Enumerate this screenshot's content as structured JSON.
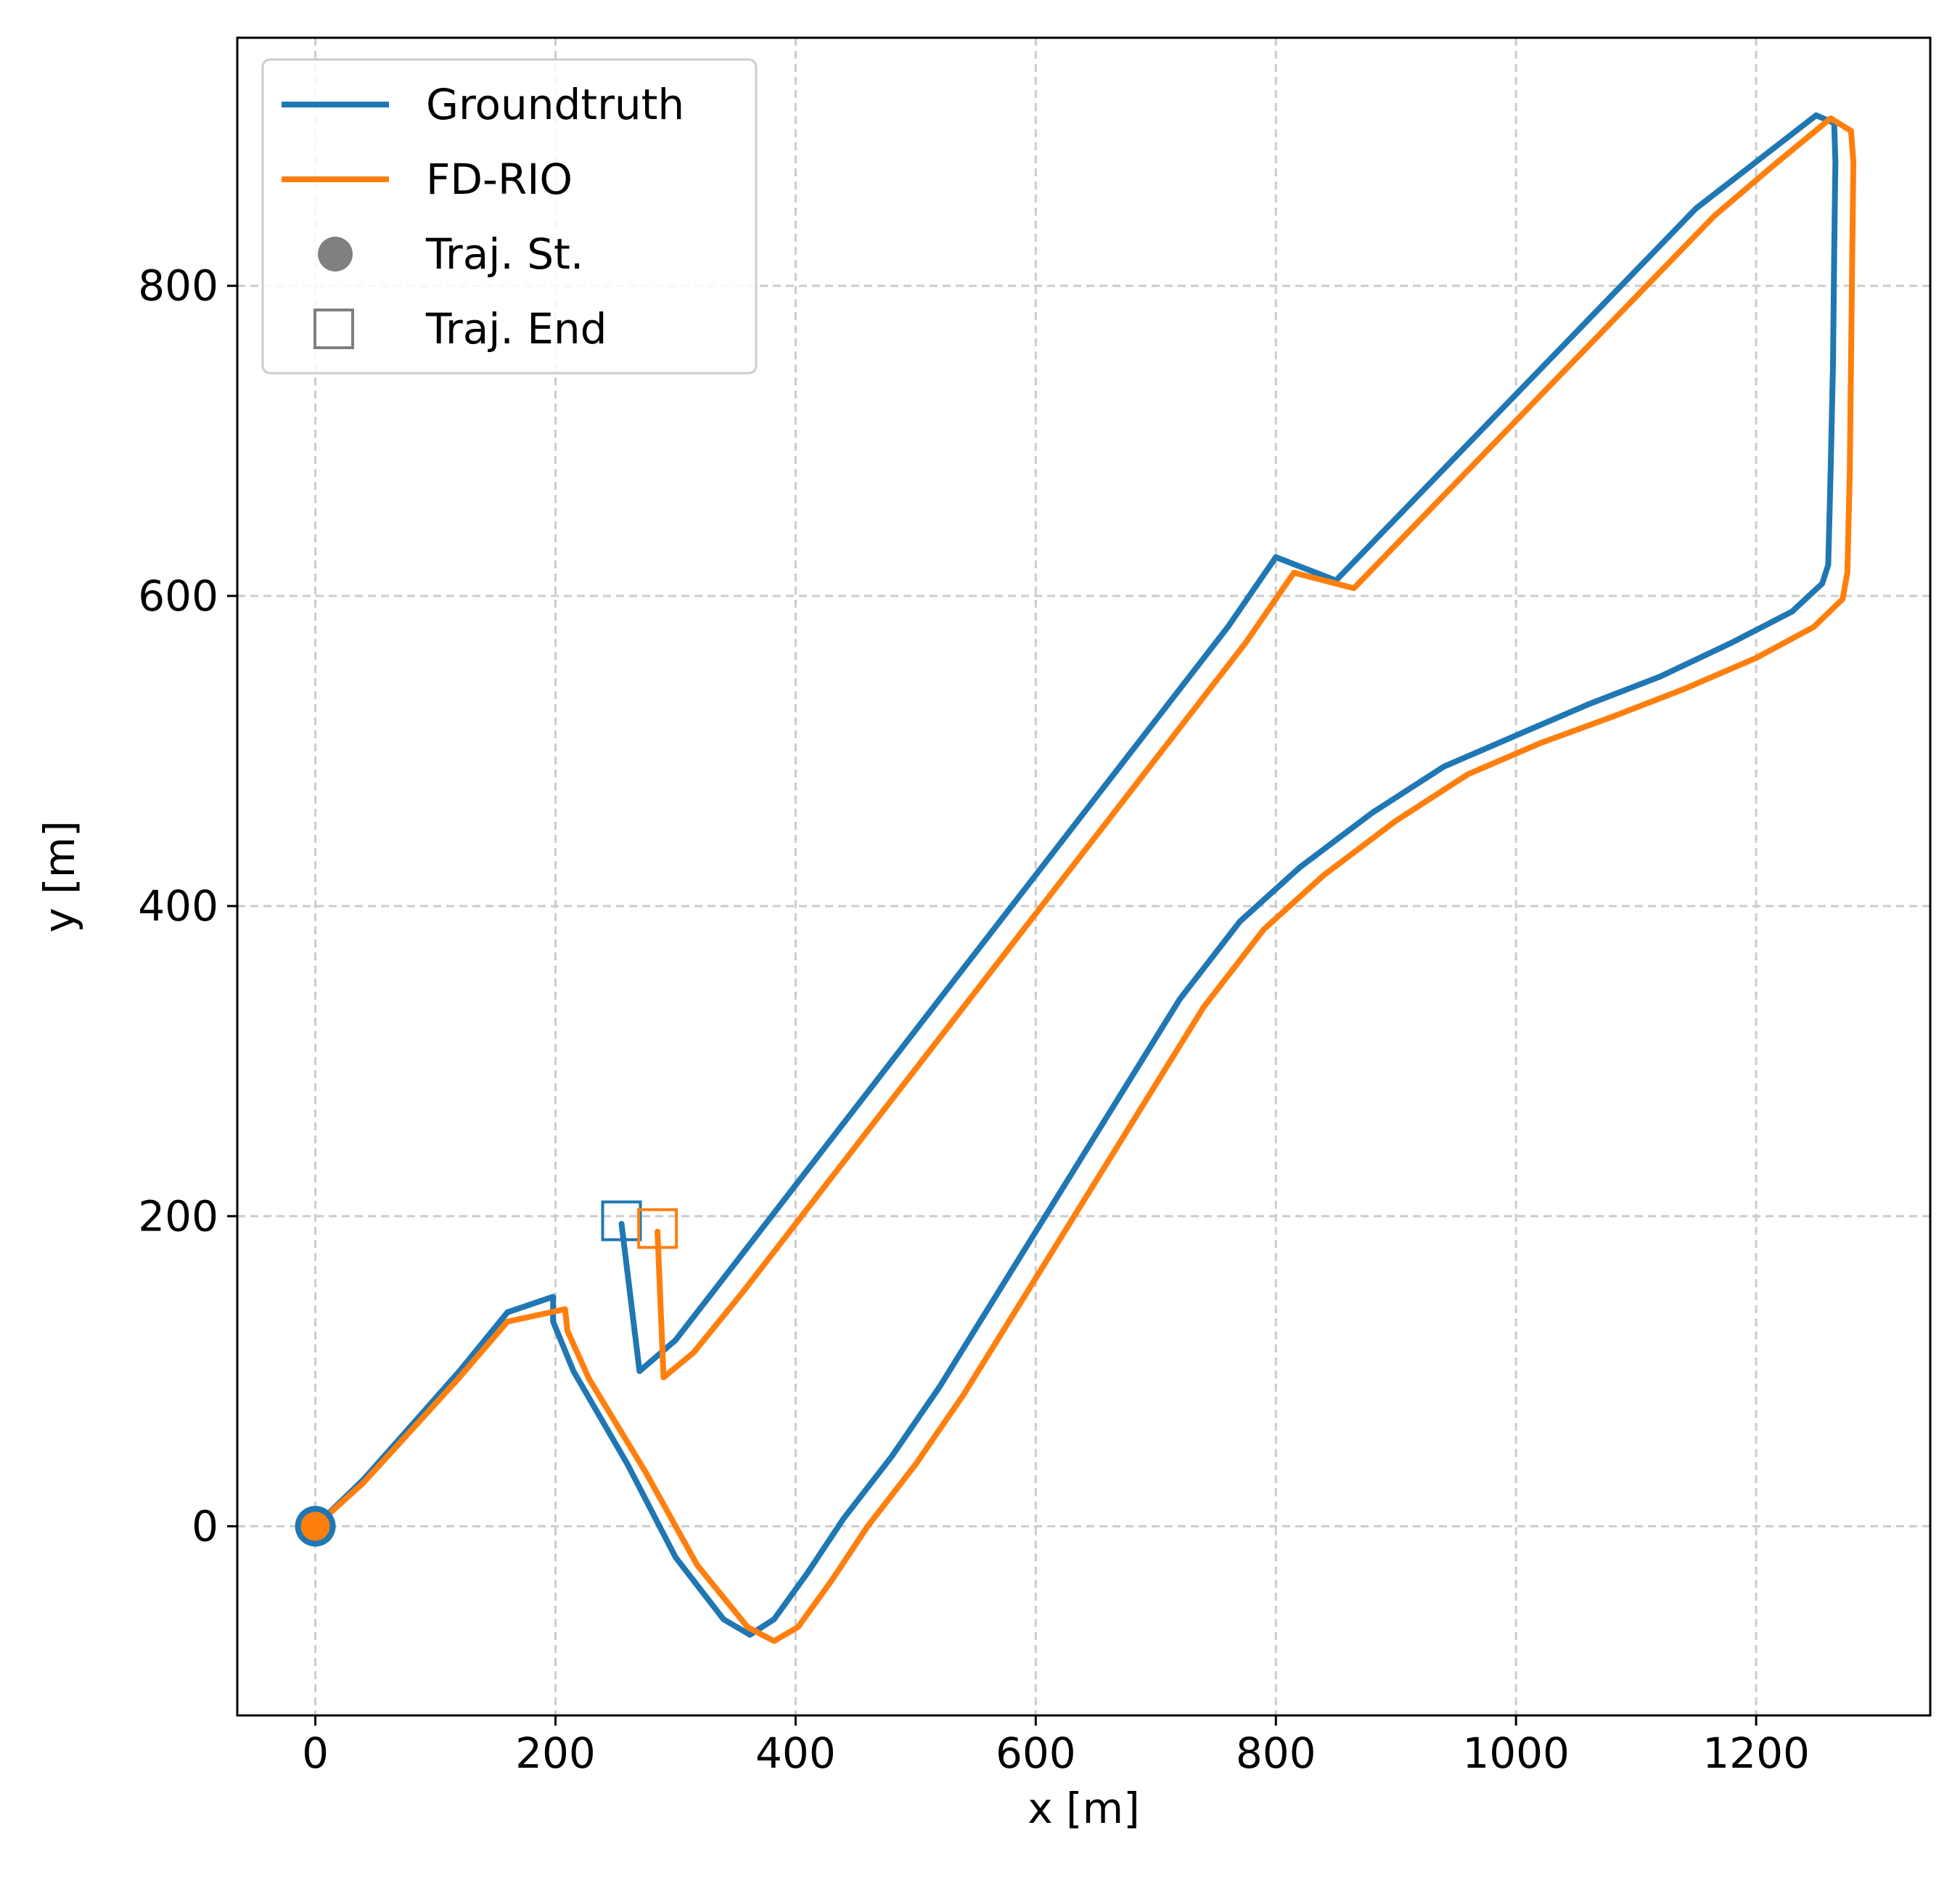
{
  "chart_data": {
    "type": "line",
    "xlabel": "x [m]",
    "ylabel": "y [m]",
    "xlim": [
      -65,
      1345
    ],
    "ylim": [
      -122,
      960
    ],
    "xticks": [
      0,
      200,
      400,
      600,
      800,
      1000,
      1200
    ],
    "yticks": [
      0,
      200,
      400,
      600,
      800
    ],
    "grid": true,
    "legend_position": "top-left",
    "legend": [
      {
        "label": "Groundtruth",
        "kind": "line",
        "color": "#1f77b4"
      },
      {
        "label": "FD-RIO",
        "kind": "line",
        "color": "#ff7f0e"
      },
      {
        "label": "Traj. St.",
        "kind": "filled-circle",
        "color": "#808080"
      },
      {
        "label": "Traj. End",
        "kind": "open-square",
        "color": "#808080"
      }
    ],
    "series": [
      {
        "name": "Groundtruth",
        "color": "#1f77b4",
        "points": [
          [
            0,
            0
          ],
          [
            40,
            30
          ],
          [
            80,
            65
          ],
          [
            120,
            100
          ],
          [
            160,
            138
          ],
          [
            198,
            148
          ],
          [
            198,
            132
          ],
          [
            215,
            100
          ],
          [
            260,
            40
          ],
          [
            300,
            -20
          ],
          [
            340,
            -60
          ],
          [
            362,
            -70
          ],
          [
            382,
            -60
          ],
          [
            410,
            -30
          ],
          [
            440,
            5
          ],
          [
            480,
            45
          ],
          [
            520,
            90
          ],
          [
            560,
            140
          ],
          [
            600,
            190
          ],
          [
            640,
            240
          ],
          [
            680,
            290
          ],
          [
            720,
            340
          ],
          [
            770,
            390
          ],
          [
            820,
            425
          ],
          [
            880,
            460
          ],
          [
            940,
            490
          ],
          [
            1000,
            510
          ],
          [
            1060,
            530
          ],
          [
            1120,
            548
          ],
          [
            1180,
            570
          ],
          [
            1230,
            590
          ],
          [
            1255,
            608
          ],
          [
            1260,
            620
          ],
          [
            1262,
            680
          ],
          [
            1264,
            750
          ],
          [
            1265,
            820
          ],
          [
            1266,
            880
          ],
          [
            1265,
            905
          ],
          [
            1250,
            910
          ],
          [
            1200,
            880
          ],
          [
            1150,
            850
          ],
          [
            1100,
            810
          ],
          [
            1050,
            770
          ],
          [
            1000,
            730
          ],
          [
            950,
            690
          ],
          [
            900,
            650
          ],
          [
            850,
            610
          ],
          [
            800,
            625
          ],
          [
            760,
            580
          ],
          [
            700,
            520
          ],
          [
            640,
            460
          ],
          [
            580,
            400
          ],
          [
            520,
            340
          ],
          [
            460,
            280
          ],
          [
            400,
            220
          ],
          [
            340,
            160
          ],
          [
            300,
            120
          ],
          [
            270,
            100
          ],
          [
            255,
            195
          ]
        ]
      },
      {
        "name": "FD-RIO",
        "color": "#ff7f0e",
        "points": [
          [
            0,
            0
          ],
          [
            40,
            28
          ],
          [
            80,
            62
          ],
          [
            120,
            96
          ],
          [
            160,
            132
          ],
          [
            208,
            140
          ],
          [
            210,
            126
          ],
          [
            228,
            95
          ],
          [
            275,
            35
          ],
          [
            318,
            -25
          ],
          [
            360,
            -65
          ],
          [
            382,
            -74
          ],
          [
            402,
            -65
          ],
          [
            430,
            -35
          ],
          [
            460,
            0
          ],
          [
            500,
            40
          ],
          [
            540,
            85
          ],
          [
            580,
            135
          ],
          [
            620,
            185
          ],
          [
            660,
            235
          ],
          [
            700,
            285
          ],
          [
            740,
            335
          ],
          [
            790,
            385
          ],
          [
            840,
            420
          ],
          [
            900,
            455
          ],
          [
            960,
            485
          ],
          [
            1020,
            505
          ],
          [
            1080,
            522
          ],
          [
            1140,
            540
          ],
          [
            1200,
            560
          ],
          [
            1248,
            580
          ],
          [
            1272,
            598
          ],
          [
            1276,
            615
          ],
          [
            1278,
            680
          ],
          [
            1279,
            750
          ],
          [
            1280,
            820
          ],
          [
            1281,
            880
          ],
          [
            1279,
            900
          ],
          [
            1262,
            908
          ],
          [
            1215,
            878
          ],
          [
            1165,
            845
          ],
          [
            1115,
            805
          ],
          [
            1065,
            765
          ],
          [
            1015,
            725
          ],
          [
            965,
            685
          ],
          [
            915,
            645
          ],
          [
            865,
            605
          ],
          [
            815,
            615
          ],
          [
            775,
            570
          ],
          [
            715,
            510
          ],
          [
            655,
            450
          ],
          [
            595,
            390
          ],
          [
            535,
            330
          ],
          [
            475,
            270
          ],
          [
            415,
            210
          ],
          [
            355,
            150
          ],
          [
            315,
            112
          ],
          [
            290,
            96
          ],
          [
            285,
            190
          ]
        ]
      }
    ],
    "start_markers": [
      {
        "series": "Groundtruth",
        "x": 0,
        "y": 0,
        "color": "#1f77b4"
      },
      {
        "series": "FD-RIO",
        "x": 0,
        "y": 0,
        "color": "#ff7f0e"
      }
    ],
    "end_markers": [
      {
        "series": "Groundtruth",
        "x": 255,
        "y": 197,
        "color": "#1f77b4"
      },
      {
        "series": "FD-RIO",
        "x": 285,
        "y": 192,
        "color": "#ff7f0e"
      }
    ]
  }
}
